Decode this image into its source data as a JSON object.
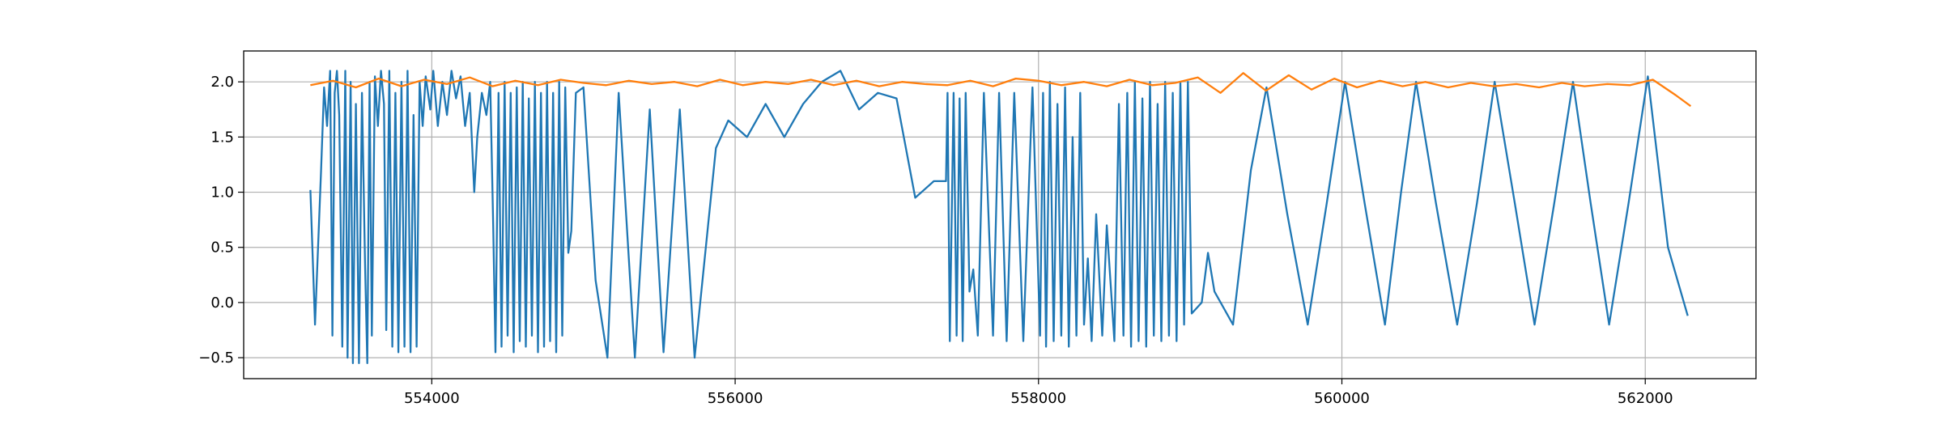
{
  "chart_data": {
    "type": "line",
    "xlim": [
      552760,
      562730
    ],
    "xticks": [
      554000,
      556000,
      558000,
      560000,
      562000
    ],
    "ylim": [
      -0.69,
      2.28
    ],
    "yticks": [
      {
        "value": -0.5,
        "label": "−0.5"
      },
      {
        "value": 0,
        "label": "0.0"
      },
      0.5,
      {
        "value": 1,
        "label": "1.0"
      },
      1.5,
      {
        "value": 2,
        "label": "2.0"
      }
    ],
    "grid": true,
    "series": [
      {
        "color": "#1f77b4",
        "x": [
          553200,
          553230,
          553270,
          553290,
          553310,
          553330,
          553345,
          553360,
          553375,
          553390,
          553410,
          553430,
          553445,
          553465,
          553480,
          553500,
          553520,
          553540,
          553560,
          553575,
          553590,
          553605,
          553625,
          553645,
          553665,
          553685,
          553700,
          553720,
          553740,
          553760,
          553780,
          553800,
          553820,
          553840,
          553860,
          553880,
          553900,
          553920,
          553940,
          553960,
          553990,
          554010,
          554040,
          554070,
          554100,
          554130,
          554160,
          554190,
          554220,
          554250,
          554280,
          554300,
          554330,
          554360,
          554385,
          554405,
          554420,
          554440,
          554460,
          554480,
          554500,
          554520,
          554540,
          554560,
          554580,
          554600,
          554620,
          554640,
          554660,
          554680,
          554700,
          554720,
          554740,
          554760,
          554780,
          554800,
          554820,
          554840,
          554860,
          554880,
          554900,
          554920,
          554950,
          555000,
          555080,
          555158,
          555232,
          555339,
          555437,
          555528,
          555635,
          555733,
          555873,
          555955,
          556078,
          556201,
          556324,
          556448,
          556571,
          556694,
          556817,
          556941,
          557064,
          557187,
          557310,
          557390,
          557400,
          557415,
          557440,
          557460,
          557480,
          557500,
          557520,
          557545,
          557570,
          557600,
          557640,
          557700,
          557740,
          557790,
          557840,
          557900,
          557960,
          558010,
          558030,
          558050,
          558075,
          558100,
          558125,
          558150,
          558175,
          558200,
          558225,
          558250,
          558275,
          558300,
          558325,
          558350,
          558380,
          558420,
          558450,
          558500,
          558530,
          558560,
          558585,
          558610,
          558635,
          558660,
          558685,
          558710,
          558735,
          558760,
          558785,
          558810,
          558835,
          558860,
          558885,
          558910,
          558935,
          558960,
          558985,
          559010,
          559076,
          559117,
          559160,
          559282,
          559400,
          559503,
          559640,
          559775,
          559900,
          560021,
          560150,
          560284,
          560390,
          560489,
          560620,
          560760,
          560890,
          561007,
          561140,
          561270,
          561400,
          561524,
          561640,
          561762,
          561890,
          562017,
          562150,
          562280
        ],
        "values": [
          1.02,
          -0.2,
          1.2,
          1.95,
          1.6,
          2.1,
          -0.3,
          1.9,
          2.1,
          1.7,
          -0.4,
          2.1,
          -0.5,
          2.0,
          -0.55,
          1.8,
          -0.55,
          1.9,
          0.35,
          -0.55,
          2.0,
          -0.3,
          2.05,
          1.6,
          2.1,
          1.8,
          -0.25,
          2.1,
          -0.4,
          1.9,
          -0.45,
          2.0,
          -0.4,
          2.1,
          -0.45,
          1.7,
          -0.4,
          2.0,
          1.6,
          2.05,
          1.75,
          2.1,
          1.6,
          2.0,
          1.7,
          2.1,
          1.85,
          2.05,
          1.6,
          1.9,
          1.0,
          1.5,
          1.9,
          1.7,
          2.0,
          0.7,
          -0.45,
          1.9,
          -0.4,
          2.0,
          -0.3,
          1.9,
          -0.45,
          1.95,
          -0.35,
          2.0,
          -0.4,
          1.85,
          -0.3,
          2.0,
          -0.45,
          1.9,
          -0.4,
          2.0,
          -0.35,
          1.9,
          -0.45,
          2.0,
          -0.3,
          1.95,
          0.45,
          0.65,
          1.9,
          1.95,
          0.2,
          -0.5,
          1.9,
          -0.5,
          1.75,
          -0.45,
          1.75,
          -0.5,
          1.4,
          1.65,
          1.5,
          1.8,
          1.5,
          1.8,
          2.0,
          2.1,
          1.75,
          1.9,
          1.85,
          0.95,
          1.1,
          1.1,
          1.9,
          -0.35,
          1.9,
          -0.3,
          1.85,
          -0.35,
          1.9,
          0.1,
          0.3,
          -0.3,
          1.9,
          -0.3,
          1.9,
          -0.35,
          1.9,
          -0.35,
          1.95,
          -0.3,
          1.9,
          -0.4,
          2.0,
          -0.35,
          1.8,
          -0.3,
          1.95,
          -0.4,
          1.5,
          -0.3,
          1.9,
          -0.2,
          0.4,
          -0.35,
          0.8,
          -0.3,
          0.7,
          -0.35,
          1.8,
          -0.3,
          1.9,
          -0.4,
          2.0,
          -0.35,
          1.85,
          -0.4,
          2.0,
          -0.3,
          1.8,
          -0.35,
          2.0,
          -0.3,
          1.9,
          -0.35,
          2.0,
          -0.2,
          2.0,
          -0.1,
          0.0,
          0.45,
          0.1,
          -0.2,
          1.2,
          1.95,
          0.8,
          -0.2,
          0.9,
          2.0,
          0.9,
          -0.2,
          1.0,
          2.0,
          0.9,
          -0.2,
          0.9,
          2.0,
          0.9,
          -0.2,
          0.9,
          2.0,
          0.9,
          -0.2,
          0.9,
          2.05,
          0.5,
          -0.12
        ]
      },
      {
        "color": "#ff7f0e",
        "x": [
          553200,
          553350,
          553500,
          553650,
          553800,
          553950,
          554100,
          554250,
          554400,
          554550,
          554700,
          554850,
          555000,
          555150,
          555300,
          555450,
          555600,
          555750,
          555900,
          556050,
          556200,
          556350,
          556500,
          556650,
          556800,
          556950,
          557100,
          557250,
          557400,
          557550,
          557700,
          557850,
          558000,
          558150,
          558300,
          558450,
          558600,
          558750,
          558900,
          559050,
          559200,
          559350,
          559500,
          559650,
          559800,
          559950,
          560100,
          560250,
          560400,
          560550,
          560700,
          560850,
          561000,
          561150,
          561300,
          561450,
          561600,
          561750,
          561900,
          562050,
          562200,
          562300
        ],
        "values": [
          1.97,
          2.01,
          1.95,
          2.03,
          1.96,
          2.02,
          1.98,
          2.04,
          1.96,
          2.01,
          1.97,
          2.02,
          1.99,
          1.97,
          2.01,
          1.98,
          2.0,
          1.96,
          2.02,
          1.97,
          2.0,
          1.98,
          2.02,
          1.97,
          2.01,
          1.96,
          2.0,
          1.98,
          1.97,
          2.01,
          1.96,
          2.03,
          2.01,
          1.97,
          2.0,
          1.96,
          2.02,
          1.97,
          1.99,
          2.04,
          1.9,
          2.08,
          1.92,
          2.06,
          1.93,
          2.03,
          1.95,
          2.01,
          1.96,
          2.0,
          1.95,
          1.99,
          1.96,
          1.98,
          1.95,
          1.99,
          1.96,
          1.98,
          1.97,
          2.02,
          1.88,
          1.78
        ]
      }
    ]
  }
}
